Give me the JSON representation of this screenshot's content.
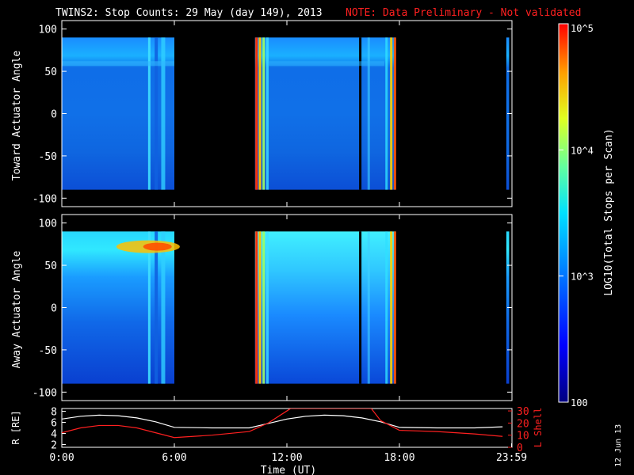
{
  "title": "TWINS2: Stop Counts: 29 May (day 149), 2013",
  "note": "NOTE: Data Preliminary - Not validated",
  "date_stamp": "12 Jun 13",
  "colors": {
    "note": "#ff2020",
    "orbit_R": "#ffffff",
    "orbit_L": "#ff2020"
  },
  "chart_data": [
    {
      "type": "heatmap",
      "name": "toward",
      "ylabel": "Toward Actuator Angle",
      "ylim": [
        -110,
        110
      ],
      "yticks": [
        100,
        50,
        0,
        -50,
        -100
      ],
      "x_hours": [
        0,
        24
      ],
      "data_range": [
        -90,
        90
      ],
      "segments": [
        [
          0.0,
          6.0
        ],
        [
          10.3,
          17.8
        ],
        [
          23.7,
          23.85
        ]
      ],
      "colorbar": {
        "label": "LOG10(Total Stops per Scan)",
        "range": [
          100,
          100000
        ],
        "ticks": [
          "10^5",
          "10^4",
          "10^3",
          "100"
        ],
        "scale": "log"
      }
    },
    {
      "type": "heatmap",
      "name": "away",
      "ylabel": "Away Actuator Angle",
      "ylim": [
        -110,
        110
      ],
      "yticks": [
        100,
        50,
        0,
        -50,
        -100
      ],
      "x_hours": [
        0,
        24
      ],
      "data_range": [
        -90,
        90
      ],
      "segments": [
        [
          0.0,
          6.0
        ],
        [
          10.3,
          17.8
        ],
        [
          23.7,
          23.85
        ]
      ]
    },
    {
      "type": "line",
      "name": "orbit",
      "ylabel_left": "R [RE]",
      "ylabel_right": "L Shell",
      "xlabel": "Time (UT)",
      "xticks": [
        "0:00",
        "6:00",
        "12:00",
        "18:00",
        "23:59"
      ],
      "yticks_left": [
        2,
        4,
        6,
        8
      ],
      "yticks_right": [
        0,
        10,
        20,
        30
      ],
      "ylim_left": [
        1.5,
        8.5
      ],
      "ylim_right": [
        0,
        32
      ],
      "series": [
        {
          "name": "R",
          "x": [
            0,
            1,
            2,
            3,
            4,
            5,
            6,
            8,
            10,
            11,
            12,
            13,
            14,
            15,
            16,
            17,
            18,
            20,
            22,
            23.5
          ],
          "values": [
            6.6,
            7.1,
            7.3,
            7.2,
            6.8,
            6.1,
            5.1,
            5.0,
            5.0,
            5.8,
            6.6,
            7.1,
            7.3,
            7.2,
            6.8,
            6.1,
            5.1,
            5.0,
            5.0,
            5.2
          ]
        },
        {
          "name": "L Shell",
          "x": [
            0,
            1,
            2,
            3,
            4,
            5,
            6,
            8,
            10,
            11,
            12,
            12.2,
            16.5,
            17,
            18,
            20,
            22,
            23.5
          ],
          "values": [
            12,
            16,
            18,
            18,
            16,
            12,
            8,
            10,
            13,
            20,
            30,
            32,
            32,
            22,
            14,
            13,
            11,
            9
          ]
        }
      ]
    }
  ]
}
